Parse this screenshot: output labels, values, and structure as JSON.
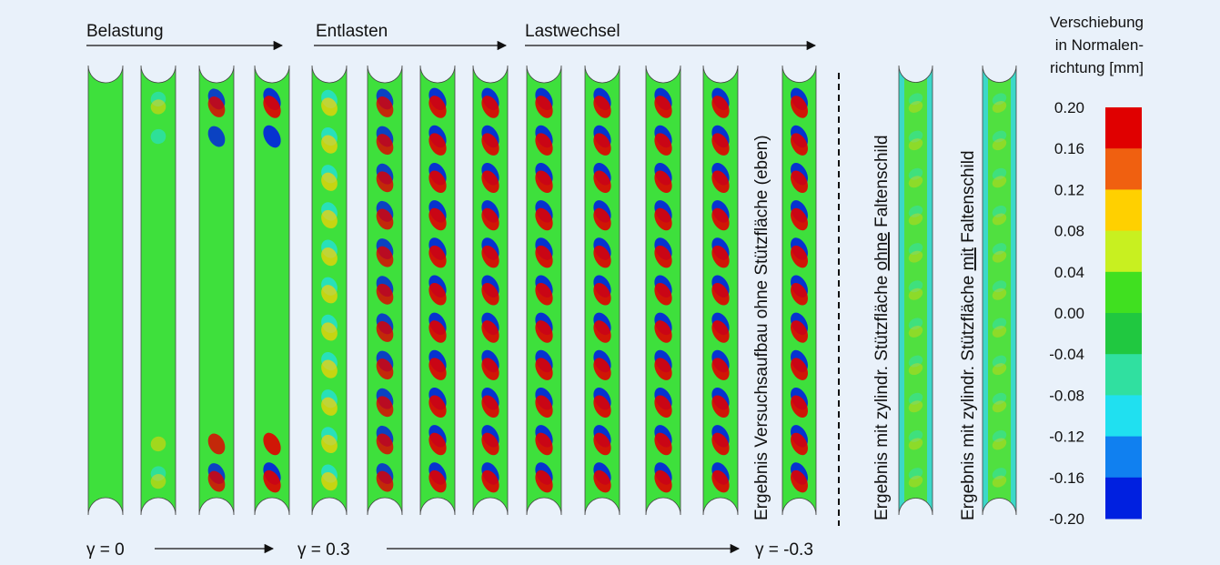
{
  "phases": [
    "Belastung",
    "Entlasten",
    "Lastwechsel"
  ],
  "gamma": [
    "γ = 0",
    "γ = 0.3",
    "γ = -0.3"
  ],
  "results": [
    {
      "before": "Ergebnis Versuchsaufbau ohne Stützfläche (eben)",
      "emphasis": "",
      "after": ""
    },
    {
      "before": "Ergebnis mit zylindr. Stützfläche ",
      "emphasis": "ohne",
      "after": " Faltenschild"
    },
    {
      "before": "Ergebnis mit zylindr. Stützfläche ",
      "emphasis": "mit",
      "after": " Faltenschild"
    }
  ],
  "colorbar": {
    "title": [
      "Verschiebung",
      "in Normalen-",
      "richtung [mm]"
    ],
    "ticks": [
      "0.20",
      "0.16",
      "0.12",
      "0.08",
      "0.04",
      "0.00",
      "-0.04",
      "-0.08",
      "-0.12",
      "-0.16",
      "-0.20"
    ],
    "colors": [
      "#e00000",
      "#f06010",
      "#ffd000",
      "#c8f020",
      "#40e020",
      "#20c840",
      "#30e0a0",
      "#20e0f0",
      "#1080f0",
      "#0020e0"
    ]
  }
}
